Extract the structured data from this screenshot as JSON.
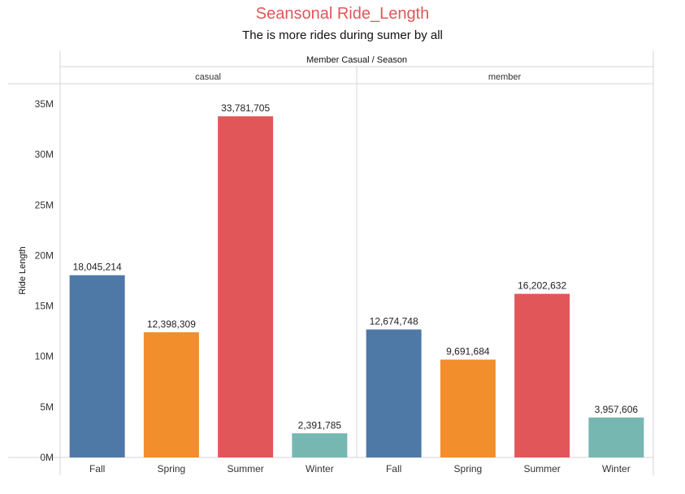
{
  "title": "Seansonal Ride_Length",
  "subtitle": "The is more rides during sumer by all",
  "colors": {
    "Fall": "#4e79a7",
    "Spring": "#f28e2b",
    "Summer": "#e15759",
    "Winter": "#76b7b2"
  },
  "chart_data": {
    "type": "bar",
    "column_header": "Member Casual / Season",
    "ylabel": "Ride Length",
    "ylim": [
      0,
      35000000
    ],
    "yticks": [
      0,
      5000000,
      10000000,
      15000000,
      20000000,
      25000000,
      30000000,
      35000000
    ],
    "ytick_labels": [
      "0M",
      "5M",
      "10M",
      "15M",
      "20M",
      "25M",
      "30M",
      "35M"
    ],
    "categories": [
      "Fall",
      "Spring",
      "Summer",
      "Winter"
    ],
    "panels": [
      {
        "name": "casual",
        "values": [
          18045214,
          12398309,
          33781705,
          2391785
        ],
        "labels": [
          "18,045,214",
          "12,398,309",
          "33,781,705",
          "2,391,785"
        ]
      },
      {
        "name": "member",
        "values": [
          12674748,
          9691684,
          16202632,
          3957606
        ],
        "labels": [
          "12,674,748",
          "9,691,684",
          "16,202,632",
          "3,957,606"
        ]
      }
    ],
    "grid": false
  }
}
